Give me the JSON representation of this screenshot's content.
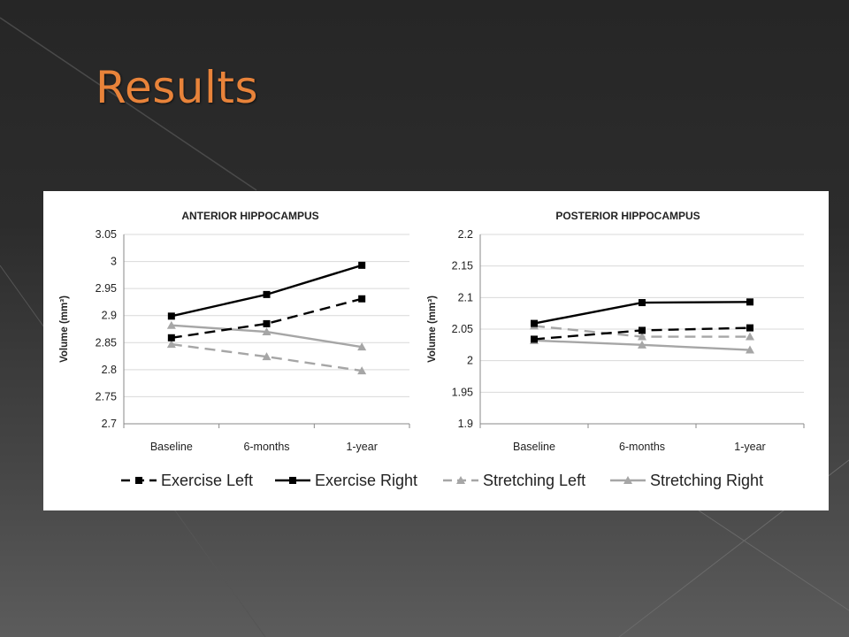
{
  "slide": {
    "title": "Results"
  },
  "colors": {
    "title": "#e8833a",
    "exercise": "#000000",
    "stretching": "#a6a6a6"
  },
  "chart_data": [
    {
      "type": "line",
      "title": "ANTERIOR HIPPOCAMPUS",
      "ylabel": "Volume (mm³)",
      "xlabel": "",
      "categories": [
        "Baseline",
        "6-months",
        "1-year"
      ],
      "ylim": [
        2.7,
        3.05
      ],
      "yticks": [
        "2.7",
        "2.75",
        "2.8",
        "2.85",
        "2.9",
        "2.95",
        "3",
        "3.05"
      ],
      "grid": true,
      "series": [
        {
          "name": "Exercise Left",
          "values": [
            2.859,
            2.885,
            2.931
          ],
          "color": "#000000",
          "dashed": true,
          "marker": "square"
        },
        {
          "name": "Exercise Right",
          "values": [
            2.899,
            2.939,
            2.993
          ],
          "color": "#000000",
          "dashed": false,
          "marker": "square"
        },
        {
          "name": "Stretching Left",
          "values": [
            2.847,
            2.824,
            2.798
          ],
          "color": "#a6a6a6",
          "dashed": true,
          "marker": "triangle"
        },
        {
          "name": "Stretching Right",
          "values": [
            2.882,
            2.87,
            2.842
          ],
          "color": "#a6a6a6",
          "dashed": false,
          "marker": "triangle"
        }
      ]
    },
    {
      "type": "line",
      "title": "POSTERIOR HIPPOCAMPUS",
      "ylabel": "Volume (mm³)",
      "xlabel": "",
      "categories": [
        "Baseline",
        "6-months",
        "1-year"
      ],
      "ylim": [
        1.9,
        2.2
      ],
      "yticks": [
        "1.9",
        "1.95",
        "2",
        "2.05",
        "2.1",
        "2.15",
        "2.2"
      ],
      "grid": true,
      "series": [
        {
          "name": "Exercise Left",
          "values": [
            2.034,
            2.048,
            2.052
          ],
          "color": "#000000",
          "dashed": true,
          "marker": "square"
        },
        {
          "name": "Exercise Right",
          "values": [
            2.059,
            2.092,
            2.093
          ],
          "color": "#000000",
          "dashed": false,
          "marker": "square"
        },
        {
          "name": "Stretching Left",
          "values": [
            2.055,
            2.038,
            2.038
          ],
          "color": "#a6a6a6",
          "dashed": true,
          "marker": "triangle"
        },
        {
          "name": "Stretching Right",
          "values": [
            2.032,
            2.025,
            2.017
          ],
          "color": "#a6a6a6",
          "dashed": false,
          "marker": "triangle"
        }
      ]
    }
  ],
  "legend": {
    "placement": "bottom",
    "items": [
      "Exercise Left",
      "Exercise Right",
      "Stretching Left",
      "Stretching Right"
    ]
  }
}
